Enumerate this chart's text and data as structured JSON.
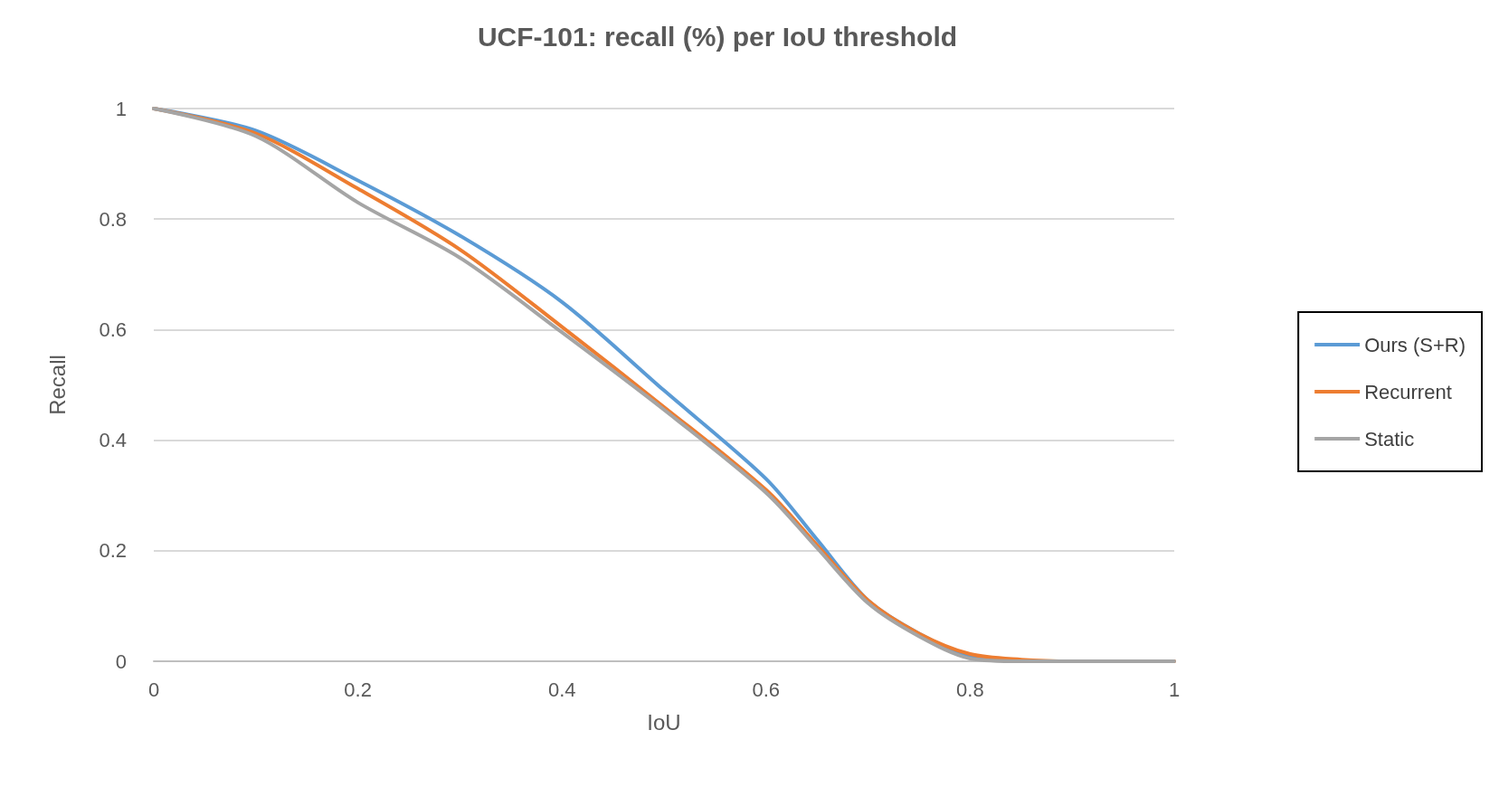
{
  "chart_data": {
    "type": "line",
    "title": "UCF-101: recall (%) per IoU threshold",
    "xlabel": "IoU",
    "ylabel": "Recall",
    "xlim": [
      0,
      1
    ],
    "xticks": [
      0,
      0.2,
      0.4,
      0.6,
      0.8,
      1
    ],
    "ylim": [
      0,
      1
    ],
    "yticks": [
      0,
      0.2,
      0.4,
      0.6,
      0.8,
      1
    ],
    "grid": "y",
    "legend": "right",
    "marker": "none",
    "series": [
      {
        "name": "Ours (S+R)",
        "color": "#5b9bd5",
        "x": [
          0,
          0.1,
          0.2,
          0.3,
          0.4,
          0.5,
          0.6,
          0.65,
          0.7,
          0.75,
          0.8,
          0.85
        ],
        "values": [
          1,
          0.96,
          0.87,
          0.77,
          0.65,
          0.49,
          0.33,
          0.22,
          0.11,
          0.05,
          0.01,
          0.002
        ]
      },
      {
        "name": "Recurrent",
        "color": "#ed7d31",
        "x": [
          0,
          0.1,
          0.2,
          0.3,
          0.4,
          0.5,
          0.6,
          0.65,
          0.7,
          0.75,
          0.8,
          0.85,
          0.9,
          1
        ],
        "values": [
          1,
          0.955,
          0.855,
          0.745,
          0.605,
          0.46,
          0.31,
          0.21,
          0.11,
          0.05,
          0.013,
          0.003,
          0,
          0
        ]
      },
      {
        "name": "Static",
        "color": "#a5a5a5",
        "x": [
          0,
          0.1,
          0.2,
          0.3,
          0.4,
          0.5,
          0.6,
          0.65,
          0.7,
          0.75,
          0.8,
          0.85,
          0.9,
          1
        ],
        "values": [
          1,
          0.95,
          0.83,
          0.73,
          0.595,
          0.455,
          0.305,
          0.205,
          0.105,
          0.045,
          0.005,
          0,
          0,
          0
        ]
      }
    ]
  }
}
